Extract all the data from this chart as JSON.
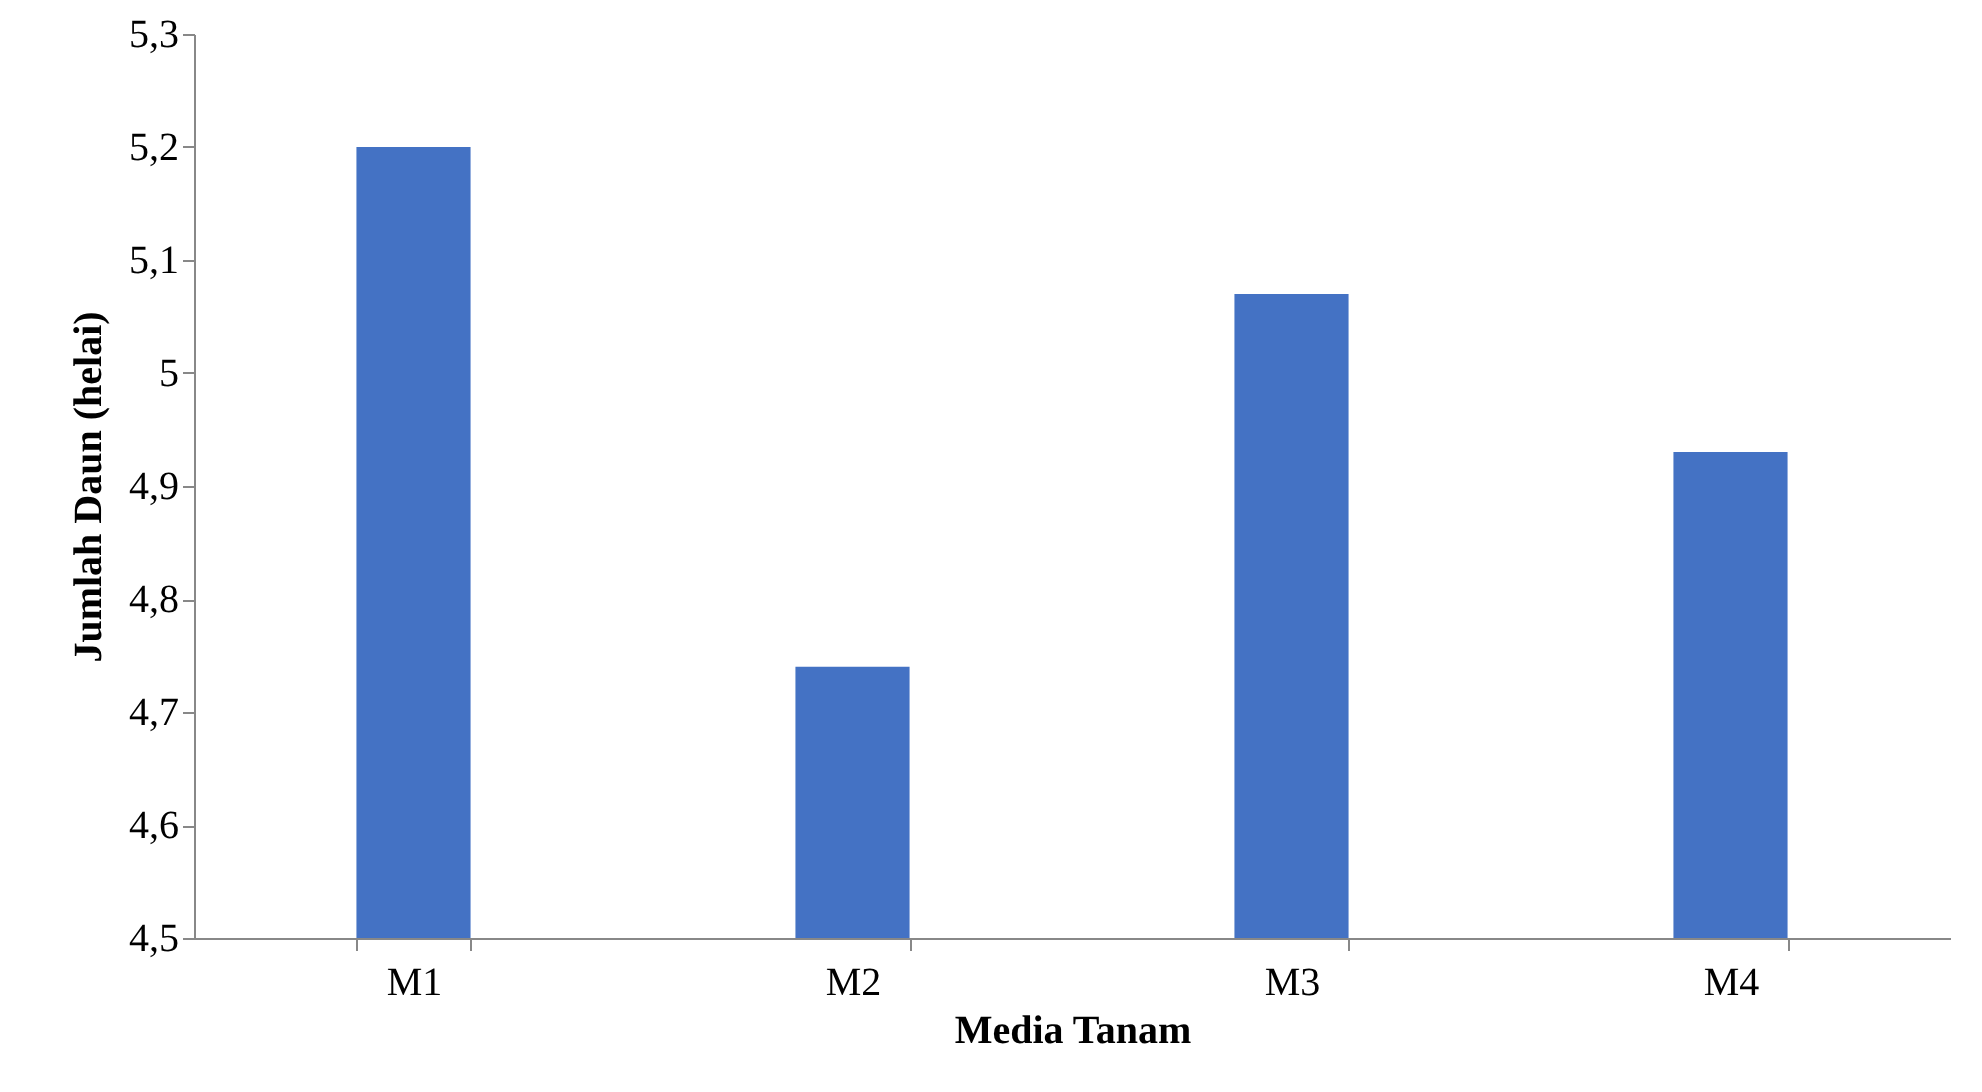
{
  "chart_data": {
    "type": "bar",
    "xlabel": "Media Tanam",
    "ylabel": "Jumlah Daun (helai)",
    "categories": [
      "M1",
      "M2",
      "M3",
      "M4"
    ],
    "values": [
      5.2,
      4.74,
      5.07,
      4.93
    ],
    "color": "#4472c4",
    "ylim": [
      4.5,
      5.3
    ],
    "yticks": [
      {
        "value": 4.5,
        "label": "4,5"
      },
      {
        "value": 4.6,
        "label": "4,6"
      },
      {
        "value": 4.7,
        "label": "4,7"
      },
      {
        "value": 4.8,
        "label": "4,8"
      },
      {
        "value": 4.9,
        "label": "4,9"
      },
      5,
      {
        "value": 5.1,
        "label": "5,1"
      },
      {
        "value": 5.2,
        "label": "5,2"
      },
      {
        "value": 5.3,
        "label": "5,3"
      }
    ],
    "grid": false,
    "legend": false
  }
}
